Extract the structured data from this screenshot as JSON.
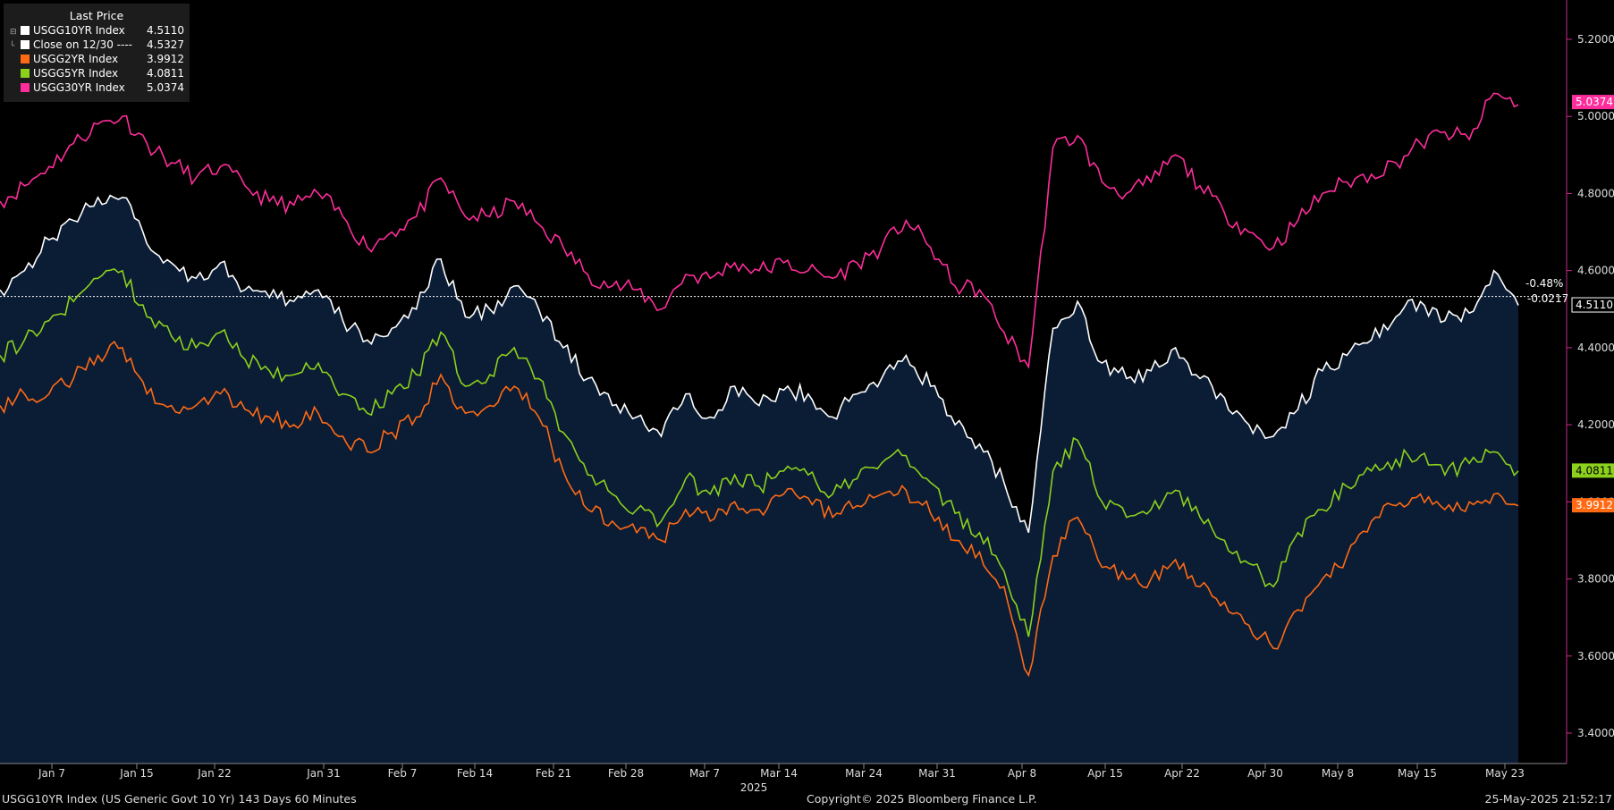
{
  "legend": {
    "header": "Last Price",
    "items": [
      {
        "name": "USGG10YR Index",
        "value": "4.5110",
        "color": "#ffffff"
      },
      {
        "name": "Close on 12/30 ----",
        "value": "4.5327",
        "color": "#ffffff"
      },
      {
        "name": "USGG2YR Index",
        "value": "3.9912",
        "color": "#ff6a13"
      },
      {
        "name": "USGG5YR Index",
        "value": "4.0811",
        "color": "#8cd11c"
      },
      {
        "name": "USGG30YR Index",
        "value": "5.0374",
        "color": "#ff2d9b"
      }
    ]
  },
  "change_pct": "-0.48%",
  "change_abs": "-0.0217",
  "footer": {
    "left": "USGG10YR Index (US Generic Govt 10 Yr) 143 Days 60 Minutes",
    "center": "Copyright© 2025 Bloomberg Finance L.P.",
    "right": "25-May-2025 21:52:17"
  },
  "colors": {
    "background": "#000000",
    "area_fill": "#0b1c35",
    "axis": "#c9298a"
  },
  "chart_data": {
    "type": "line",
    "title": "",
    "xlabel": "",
    "ylabel": "",
    "year_label": "2025",
    "ylim": [
      3.32,
      5.3
    ],
    "y_ticks": [
      "3.4000",
      "3.6000",
      "3.8000",
      "4.0000",
      "4.2000",
      "4.4000",
      "4.6000",
      "4.8000",
      "5.0000",
      "5.2000"
    ],
    "x_ticks": [
      "Jan 7",
      "Jan 15",
      "Jan 22",
      "Jan 31",
      "Feb 7",
      "Feb 14",
      "Feb 21",
      "Feb 28",
      "Mar 7",
      "Mar 14",
      "Mar 24",
      "Mar 31",
      "Apr 8",
      "Apr 15",
      "Apr 22",
      "Apr 30",
      "May 8",
      "May 15",
      "May 23"
    ],
    "reference_line": {
      "label": "Close on 12/30",
      "value": 4.5327
    },
    "last_value_labels": [
      "5.0374",
      "4.5110",
      "4.0811",
      "3.9912"
    ],
    "series": [
      {
        "name": "USGG30YR Index",
        "color": "#ff2d9b",
        "last": 5.0374,
        "values": [
          4.78,
          4.82,
          4.87,
          4.93,
          4.98,
          5.0,
          4.93,
          4.88,
          4.84,
          4.87,
          4.82,
          4.78,
          4.77,
          4.8,
          4.74,
          4.66,
          4.7,
          4.74,
          4.84,
          4.74,
          4.74,
          4.78,
          4.72,
          4.66,
          4.59,
          4.56,
          4.55,
          4.5,
          4.59,
          4.58,
          4.62,
          4.6,
          4.62,
          4.6,
          4.58,
          4.62,
          4.66,
          4.73,
          4.66,
          4.56,
          4.55,
          4.44,
          4.35,
          4.92,
          4.95,
          4.83,
          4.8,
          4.83,
          4.9,
          4.82,
          4.75,
          4.7,
          4.66,
          4.73,
          4.8,
          4.83,
          4.85,
          4.88,
          4.93,
          4.96,
          4.94,
          5.06,
          5.03
        ]
      },
      {
        "name": "USGG10YR Index",
        "color": "#ffffff",
        "last": 4.511,
        "values": [
          4.55,
          4.6,
          4.68,
          4.73,
          4.79,
          4.79,
          4.67,
          4.62,
          4.58,
          4.62,
          4.55,
          4.53,
          4.52,
          4.55,
          4.47,
          4.42,
          4.45,
          4.5,
          4.63,
          4.48,
          4.5,
          4.56,
          4.5,
          4.4,
          4.32,
          4.25,
          4.22,
          4.17,
          4.28,
          4.22,
          4.3,
          4.25,
          4.29,
          4.28,
          4.22,
          4.28,
          4.32,
          4.38,
          4.3,
          4.2,
          4.15,
          4.05,
          3.92,
          4.45,
          4.52,
          4.36,
          4.32,
          4.34,
          4.4,
          4.32,
          4.27,
          4.2,
          4.17,
          4.24,
          4.34,
          4.38,
          4.42,
          4.48,
          4.52,
          4.47,
          4.49,
          4.6,
          4.51
        ]
      },
      {
        "name": "USGG5YR Index",
        "color": "#8cd11c",
        "last": 4.0811,
        "values": [
          4.38,
          4.42,
          4.47,
          4.52,
          4.58,
          4.6,
          4.48,
          4.43,
          4.4,
          4.44,
          4.37,
          4.34,
          4.33,
          4.36,
          4.28,
          4.23,
          4.28,
          4.33,
          4.44,
          4.3,
          4.33,
          4.4,
          4.32,
          4.18,
          4.07,
          4.02,
          3.98,
          3.95,
          4.06,
          4.02,
          4.07,
          4.04,
          4.08,
          4.07,
          4.02,
          4.06,
          4.1,
          4.12,
          4.05,
          3.97,
          3.92,
          3.82,
          3.65,
          4.08,
          4.16,
          4.0,
          3.96,
          3.98,
          4.03,
          3.96,
          3.9,
          3.84,
          3.78,
          3.92,
          3.98,
          4.04,
          4.08,
          4.11,
          4.12,
          4.07,
          4.1,
          4.13,
          4.08
        ]
      },
      {
        "name": "USGG2YR Index",
        "color": "#ff6a13",
        "last": 3.9912,
        "values": [
          4.25,
          4.28,
          4.28,
          4.32,
          4.38,
          4.4,
          4.28,
          4.25,
          4.25,
          4.28,
          4.24,
          4.22,
          4.2,
          4.23,
          4.17,
          4.13,
          4.18,
          4.22,
          4.33,
          4.23,
          4.25,
          4.3,
          4.22,
          4.08,
          3.98,
          3.95,
          3.92,
          3.9,
          3.98,
          3.95,
          4.0,
          3.98,
          4.02,
          4.01,
          3.96,
          3.99,
          4.02,
          4.03,
          3.97,
          3.9,
          3.87,
          3.78,
          3.55,
          3.86,
          3.96,
          3.83,
          3.8,
          3.8,
          3.85,
          3.78,
          3.74,
          3.68,
          3.62,
          3.72,
          3.8,
          3.86,
          3.95,
          3.99,
          4.02,
          3.98,
          4.0,
          4.02,
          3.99
        ]
      }
    ]
  }
}
